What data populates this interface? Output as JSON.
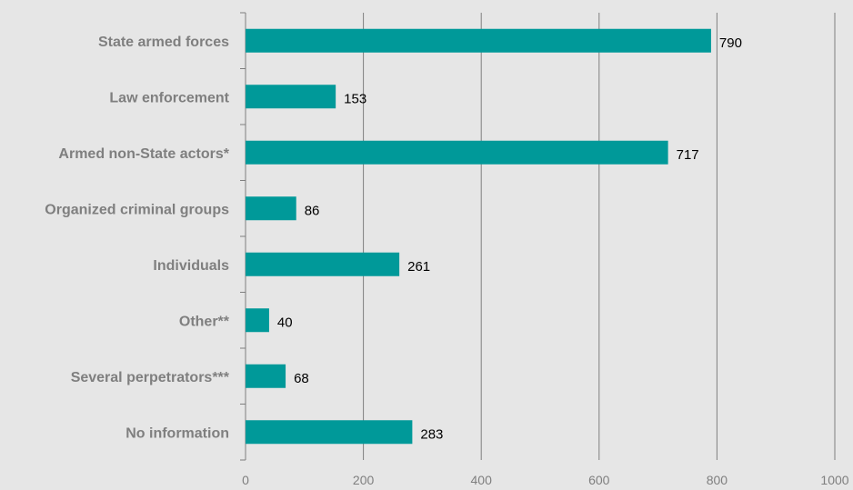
{
  "colors": {
    "background": "#e6e6e6",
    "bar": "#009999",
    "grid": "#7f7f7f",
    "label": "#7f7f7f",
    "value": "#000000"
  },
  "chart_data": {
    "type": "bar",
    "orientation": "horizontal",
    "categories": [
      "State armed forces",
      "Law enforcement",
      "Armed non-State actors*",
      "Organized criminal groups",
      "Individuals",
      "Other**",
      "Several perpetrators***",
      "No information"
    ],
    "values": [
      790,
      153,
      717,
      86,
      261,
      40,
      68,
      283
    ],
    "data_labels": [
      "790",
      "153",
      "717",
      "86",
      "261",
      "40",
      "68",
      "283"
    ],
    "xlim": [
      0,
      1000
    ],
    "xticks": [
      0,
      200,
      400,
      600,
      800,
      1000
    ],
    "xtick_labels": [
      "0",
      "200",
      "400",
      "600",
      "800",
      "1000"
    ],
    "grid": true,
    "legend": false
  }
}
